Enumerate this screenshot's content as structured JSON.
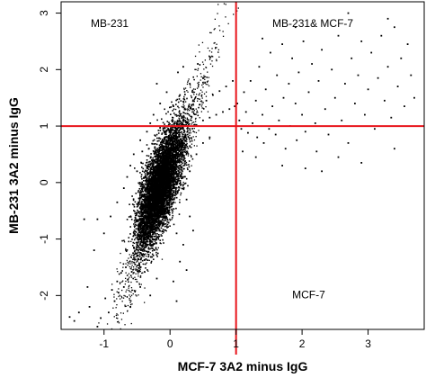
{
  "chart_data": {
    "type": "scatter",
    "title": "",
    "xlabel": "MCF-7 3A2 minus IgG",
    "ylabel": "MB-231 3A2 minus IgG",
    "xlim": [
      -1.65,
      3.85
    ],
    "ylim": [
      -2.6,
      3.2
    ],
    "x_ticks": [
      "-1",
      "0",
      "1",
      "2",
      "3"
    ],
    "y_ticks": [
      "-2",
      "-1",
      "0",
      "1",
      "2",
      "3"
    ],
    "grid": false,
    "point_color": "#000000",
    "threshold_color": "#e8141b",
    "thresholds": {
      "x": 1,
      "y": 1
    },
    "quadrant_labels": [
      {
        "text": "MB-231",
        "x": -1.2,
        "y": 2.75
      },
      {
        "text": "MB-231& MCF-7",
        "x": 1.55,
        "y": 2.75
      },
      {
        "text": "MCF-7",
        "x": 1.85,
        "y": -2.05
      }
    ],
    "series": [
      {
        "points": [
          [
            -1.52,
            -2.38
          ],
          [
            -1.45,
            -2.45
          ],
          [
            -1.38,
            -2.3
          ],
          [
            -1.22,
            -2.2
          ],
          [
            -1.1,
            -2.55
          ],
          [
            -1.05,
            -2.4
          ],
          [
            -0.98,
            -2.05
          ],
          [
            -0.93,
            -2.3
          ],
          [
            -0.88,
            -1.9
          ],
          [
            -0.84,
            -2.1
          ],
          [
            -0.8,
            -1.75
          ],
          [
            -0.78,
            -1.95
          ],
          [
            -0.74,
            -1.6
          ],
          [
            -0.7,
            -1.85
          ],
          [
            -0.67,
            -1.5
          ],
          [
            -0.64,
            -1.72
          ],
          [
            -0.61,
            -1.4
          ],
          [
            -0.58,
            -1.58
          ],
          [
            -0.56,
            -1.25
          ],
          [
            -0.53,
            -1.45
          ],
          [
            -0.5,
            -1.15
          ],
          [
            -0.48,
            -1.35
          ],
          [
            -0.46,
            -0.95
          ],
          [
            -0.44,
            -1.2
          ],
          [
            -0.42,
            -0.8
          ],
          [
            -0.4,
            -1.05
          ],
          [
            -0.38,
            -0.7
          ],
          [
            -0.36,
            -0.9
          ],
          [
            -0.35,
            -0.55
          ],
          [
            -0.33,
            -0.78
          ],
          [
            -0.31,
            -0.4
          ],
          [
            -0.3,
            -0.62
          ],
          [
            -0.28,
            -0.3
          ],
          [
            -0.27,
            -0.5
          ],
          [
            -0.25,
            -0.2
          ],
          [
            -0.24,
            -0.42
          ],
          [
            -0.22,
            -0.1
          ],
          [
            -0.21,
            -0.32
          ],
          [
            -0.2,
            0.0
          ],
          [
            -0.19,
            -0.22
          ],
          [
            -0.18,
            0.1
          ],
          [
            -0.17,
            -0.12
          ],
          [
            -0.16,
            0.2
          ],
          [
            -0.15,
            -0.05
          ],
          [
            -0.14,
            0.28
          ],
          [
            -0.13,
            0.05
          ],
          [
            -0.12,
            0.38
          ],
          [
            -0.11,
            0.12
          ],
          [
            -0.1,
            0.45
          ],
          [
            -0.09,
            0.2
          ],
          [
            -0.08,
            0.55
          ],
          [
            -0.07,
            0.3
          ],
          [
            -0.06,
            0.62
          ],
          [
            -0.05,
            0.38
          ],
          [
            -0.04,
            0.7
          ],
          [
            -0.03,
            0.45
          ],
          [
            -0.02,
            0.78
          ],
          [
            -0.01,
            0.52
          ],
          [
            0.0,
            0.85
          ],
          [
            0.01,
            0.6
          ],
          [
            0.03,
            0.92
          ],
          [
            0.05,
            0.68
          ],
          [
            0.07,
            1.0
          ],
          [
            0.09,
            0.75
          ],
          [
            0.12,
            1.08
          ],
          [
            0.15,
            0.82
          ],
          [
            0.18,
            1.15
          ],
          [
            0.22,
            0.9
          ],
          [
            0.26,
            1.22
          ],
          [
            0.3,
            0.95
          ],
          [
            0.35,
            1.3
          ],
          [
            0.4,
            1.02
          ],
          [
            0.45,
            1.38
          ],
          [
            0.5,
            1.1
          ],
          [
            0.55,
            1.45
          ],
          [
            0.6,
            1.15
          ],
          [
            0.65,
            1.55
          ],
          [
            0.7,
            1.2
          ],
          [
            0.75,
            1.62
          ],
          [
            0.8,
            1.25
          ],
          [
            0.85,
            1.7
          ],
          [
            0.9,
            1.3
          ],
          [
            0.95,
            1.8
          ],
          [
            0.98,
            1.35
          ],
          [
            0.12,
            1.95
          ],
          [
            0.2,
            2.05
          ],
          [
            0.3,
            1.75
          ],
          [
            0.42,
            2.1
          ],
          [
            0.5,
            1.85
          ],
          [
            -0.25,
            1.2
          ],
          [
            -0.3,
            1.05
          ],
          [
            -0.35,
            0.9
          ],
          [
            -0.45,
            0.75
          ],
          [
            -0.55,
            0.5
          ],
          [
            -0.6,
            0.3
          ],
          [
            -0.7,
            -0.1
          ],
          [
            -0.8,
            -0.35
          ],
          [
            -0.9,
            -0.6
          ],
          [
            -1.0,
            -0.9
          ],
          [
            -1.1,
            -0.65
          ],
          [
            -0.65,
            0.1
          ],
          [
            -0.5,
            0.2
          ],
          [
            -0.42,
            0.55
          ],
          [
            0.25,
            -0.3
          ],
          [
            0.3,
            -0.6
          ],
          [
            0.35,
            -0.85
          ],
          [
            0.2,
            -1.1
          ],
          [
            0.15,
            -1.4
          ],
          [
            0.1,
            -0.9
          ],
          [
            0.3,
            0.2
          ],
          [
            0.4,
            0.5
          ],
          [
            0.5,
            0.7
          ],
          [
            0.6,
            0.8
          ],
          [
            1.02,
            1.4
          ],
          [
            1.05,
            1.1
          ],
          [
            1.08,
            0.95
          ],
          [
            1.12,
            1.6
          ],
          [
            1.15,
            1.25
          ],
          [
            1.18,
            0.88
          ],
          [
            1.22,
            1.8
          ],
          [
            1.25,
            1.05
          ],
          [
            1.3,
            1.45
          ],
          [
            1.32,
            0.8
          ],
          [
            1.35,
            2.05
          ],
          [
            1.4,
            1.2
          ],
          [
            1.42,
            0.7
          ],
          [
            1.45,
            1.65
          ],
          [
            1.5,
            0.95
          ],
          [
            1.52,
            2.3
          ],
          [
            1.55,
            1.35
          ],
          [
            1.6,
            0.85
          ],
          [
            1.62,
            1.9
          ],
          [
            1.65,
            1.1
          ],
          [
            1.7,
            2.45
          ],
          [
            1.72,
            1.5
          ],
          [
            1.75,
            0.6
          ],
          [
            1.8,
            1.75
          ],
          [
            1.82,
            1.0
          ],
          [
            1.85,
            2.2
          ],
          [
            1.9,
            1.4
          ],
          [
            1.92,
            0.75
          ],
          [
            1.95,
            1.95
          ],
          [
            2.0,
            1.2
          ],
          [
            2.02,
            2.5
          ],
          [
            2.05,
            0.9
          ],
          [
            2.1,
            1.6
          ],
          [
            2.15,
            2.1
          ],
          [
            2.2,
            1.05
          ],
          [
            2.22,
            0.55
          ],
          [
            2.25,
            1.8
          ],
          [
            2.3,
            2.35
          ],
          [
            2.35,
            1.3
          ],
          [
            2.4,
            0.85
          ],
          [
            2.45,
            2.0
          ],
          [
            2.5,
            1.5
          ],
          [
            2.55,
            2.6
          ],
          [
            2.6,
            1.1
          ],
          [
            2.65,
            1.75
          ],
          [
            2.7,
            0.7
          ],
          [
            2.75,
            2.2
          ],
          [
            2.8,
            1.4
          ],
          [
            2.85,
            1.9
          ],
          [
            2.9,
            2.5
          ],
          [
            2.95,
            1.2
          ],
          [
            3.0,
            1.65
          ],
          [
            3.05,
            2.3
          ],
          [
            3.1,
            0.95
          ],
          [
            3.15,
            1.85
          ],
          [
            3.2,
            2.6
          ],
          [
            3.25,
            1.45
          ],
          [
            3.3,
            2.05
          ],
          [
            3.35,
            1.15
          ],
          [
            3.4,
            2.75
          ],
          [
            3.45,
            1.7
          ],
          [
            3.5,
            2.2
          ],
          [
            3.55,
            1.35
          ],
          [
            3.6,
            2.45
          ],
          [
            3.65,
            1.9
          ],
          [
            3.7,
            1.5
          ],
          [
            2.7,
            3.0
          ],
          [
            1.9,
            2.75
          ],
          [
            1.4,
            2.55
          ],
          [
            3.3,
            2.9
          ],
          [
            2.05,
            0.25
          ],
          [
            2.3,
            0.2
          ],
          [
            2.9,
            0.35
          ],
          [
            1.7,
            0.3
          ],
          [
            1.3,
            0.45
          ],
          [
            1.1,
            0.55
          ],
          [
            3.4,
            0.6
          ],
          [
            2.55,
            0.45
          ],
          [
            -0.3,
            -2.0
          ],
          [
            -0.45,
            -1.85
          ],
          [
            -0.2,
            -1.7
          ],
          [
            0.05,
            -1.75
          ],
          [
            -0.6,
            -2.2
          ],
          [
            0.1,
            -2.1
          ],
          [
            0.25,
            -1.55
          ],
          [
            -1.3,
            -0.65
          ],
          [
            -1.15,
            -1.2
          ],
          [
            -1.25,
            -1.85
          ],
          [
            -0.15,
            1.4
          ],
          [
            -0.05,
            1.6
          ],
          [
            0.05,
            1.35
          ],
          [
            0.15,
            1.55
          ],
          [
            -0.2,
            1.75
          ],
          [
            0.35,
            1.6
          ]
        ]
      }
    ]
  }
}
